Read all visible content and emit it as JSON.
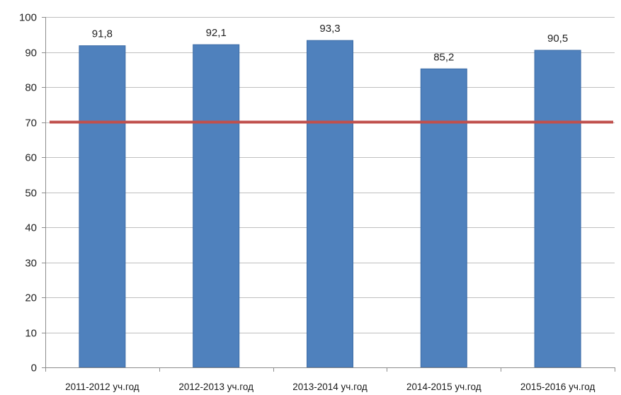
{
  "chart_data": {
    "type": "bar",
    "categories": [
      "2011-2012 уч.год",
      "2012-2013 уч.год",
      "2013-2014 уч.год",
      "2014-2015 уч.год",
      "2015-2016 уч.год"
    ],
    "values": [
      91.8,
      92.1,
      93.3,
      85.2,
      90.5
    ],
    "value_labels": [
      "91,8",
      "92,1",
      "93,3",
      "85,2",
      "90,5"
    ],
    "reference_line": {
      "value": 70,
      "color": "#c0504d"
    },
    "title": "",
    "xlabel": "",
    "ylabel": "",
    "ylim": [
      0,
      100
    ],
    "yticks": [
      0,
      10,
      20,
      30,
      40,
      50,
      60,
      70,
      80,
      90,
      100
    ],
    "grid": true,
    "legend": "none",
    "colors": {
      "bar": "#4f81bd",
      "bar_edge": "#3c6ca6",
      "grid": "#bfbfbf",
      "axis": "#8c8c8c"
    }
  }
}
